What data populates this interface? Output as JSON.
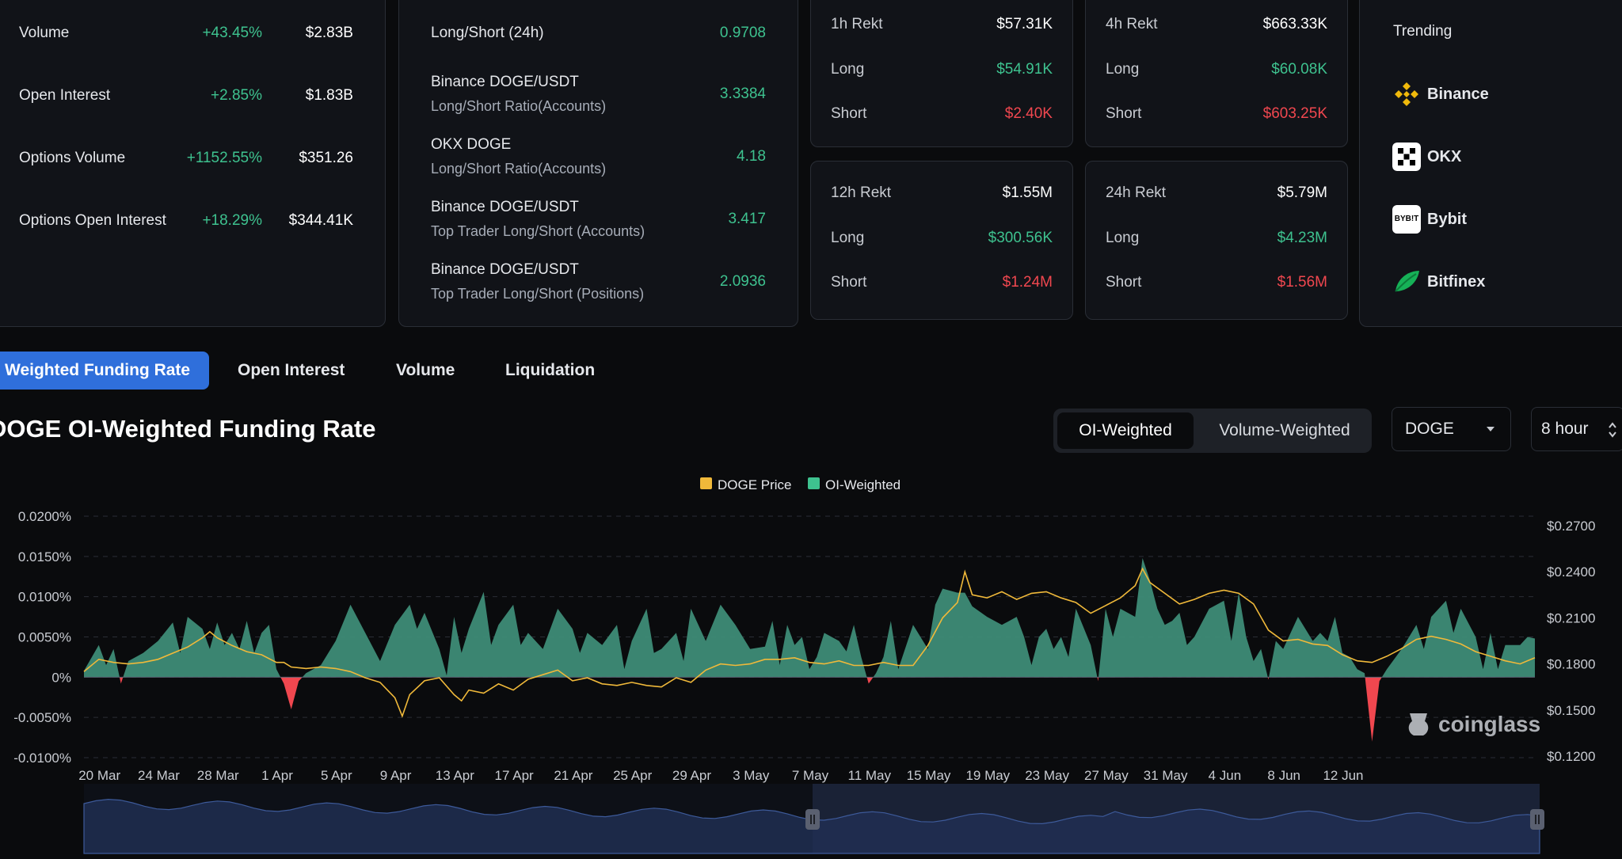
{
  "market": {
    "rows": [
      {
        "label": "Volume",
        "change": "+43.45%",
        "value": "$2.83B"
      },
      {
        "label": "Open Interest",
        "change": "+2.85%",
        "value": "$1.83B"
      },
      {
        "label": "Options Volume",
        "change": "+1152.55%",
        "value": "$351.26"
      },
      {
        "label": "Options Open Interest",
        "change": "+18.29%",
        "value": "$344.41K"
      }
    ]
  },
  "ratios": {
    "rows": [
      {
        "title": "Long/Short (24h)",
        "subtitle": "",
        "value": "0.9708"
      },
      {
        "title": "Binance DOGE/USDT",
        "subtitle": "Long/Short Ratio(Accounts)",
        "value": "3.3384"
      },
      {
        "title": "OKX DOGE",
        "subtitle": "Long/Short Ratio(Accounts)",
        "value": "4.18"
      },
      {
        "title": "Binance DOGE/USDT",
        "subtitle": "Top Trader Long/Short (Accounts)",
        "value": "3.417"
      },
      {
        "title": "Binance DOGE/USDT",
        "subtitle": "Top Trader Long/Short (Positions)",
        "value": "2.0936"
      }
    ]
  },
  "rekt": [
    {
      "title": "1h Rekt",
      "total": "$57.31K",
      "long_label": "Long",
      "long": "$54.91K",
      "short_label": "Short",
      "short": "$2.40K"
    },
    {
      "title": "4h Rekt",
      "total": "$663.33K",
      "long_label": "Long",
      "long": "$60.08K",
      "short_label": "Short",
      "short": "$603.25K"
    },
    {
      "title": "12h Rekt",
      "total": "$1.55M",
      "long_label": "Long",
      "long": "$300.56K",
      "short_label": "Short",
      "short": "$1.24M"
    },
    {
      "title": "24h Rekt",
      "total": "$5.79M",
      "long_label": "Long",
      "long": "$4.23M",
      "short_label": "Short",
      "short": "$1.56M"
    }
  ],
  "trending": {
    "title": "Trending",
    "items": [
      {
        "name": "Binance",
        "icon": "binance-icon"
      },
      {
        "name": "OKX",
        "icon": "okx-icon"
      },
      {
        "name": "Bybit",
        "icon": "bybit-icon"
      },
      {
        "name": "Bitfinex",
        "icon": "bitfinex-icon"
      }
    ],
    "bybit_logo_text": "BYB!T"
  },
  "tabs": [
    "Weighted Funding Rate",
    "Open Interest",
    "Volume",
    "Liquidation"
  ],
  "chart_title": "DOGE OI-Weighted Funding Rate",
  "toggle": {
    "on": "OI-Weighted",
    "off": "Volume-Weighted"
  },
  "symbol_select": "DOGE",
  "interval_select": "8 hour",
  "watermark": "coinglass",
  "colors": {
    "price": "#f0b93a",
    "positive": "#3ec28f",
    "negative": "#f0474f",
    "accent": "#2f6fdb"
  },
  "chart_data": {
    "type": "area",
    "legend": [
      {
        "name": "DOGE Price",
        "color": "#f0b93a"
      },
      {
        "name": "OI-Weighted",
        "color": "#3ec28f"
      }
    ],
    "legend_position": "top-center",
    "x_ticks": [
      "20 Mar",
      "24 Mar",
      "28 Mar",
      "1 Apr",
      "5 Apr",
      "9 Apr",
      "13 Apr",
      "17 Apr",
      "21 Apr",
      "25 Apr",
      "29 Apr",
      "3 May",
      "7 May",
      "11 May",
      "15 May",
      "19 May",
      "23 May",
      "27 May",
      "31 May",
      "4 Jun",
      "8 Jun",
      "12 Jun"
    ],
    "y_left_ticks": [
      "0.0200%",
      "0.0150%",
      "0.0100%",
      "0.0050%",
      "0%",
      "-0.0050%",
      "-0.0100%"
    ],
    "y_left_range": [
      -0.01,
      0.02
    ],
    "y_right_ticks": [
      "$0.2700",
      "$0.2400",
      "$0.2100",
      "$0.1800",
      "$0.1500",
      "$0.1200"
    ],
    "y_right_range": [
      0.12,
      0.27
    ],
    "x_range_days": [
      -1,
      88.5
    ],
    "series": [
      {
        "name": "OI-Weighted",
        "unit": "%",
        "points": [
          [
            -1,
            0.0008
          ],
          [
            0,
            0.004
          ],
          [
            0.5,
            0.0015
          ],
          [
            1,
            0.0035
          ],
          [
            1.5,
            -0.0008
          ],
          [
            2,
            0.002
          ],
          [
            3,
            0.003
          ],
          [
            4,
            0.0045
          ],
          [
            5,
            0.0068
          ],
          [
            5.5,
            0.003
          ],
          [
            6,
            0.0075
          ],
          [
            7,
            0.006
          ],
          [
            7.5,
            0.0035
          ],
          [
            8,
            0.0068
          ],
          [
            8.5,
            0.004
          ],
          [
            9,
            0.0055
          ],
          [
            9.5,
            0.0035
          ],
          [
            10,
            0.007
          ],
          [
            10.5,
            0.003
          ],
          [
            11,
            0.0055
          ],
          [
            11.5,
            0.0065
          ],
          [
            12,
            0.001
          ],
          [
            12.5,
            -0.0008
          ],
          [
            13,
            -0.004
          ],
          [
            13.5,
            -0.0005
          ],
          [
            14,
            0.0005
          ],
          [
            15,
            0.0015
          ],
          [
            16,
            0.0045
          ],
          [
            17,
            0.009
          ],
          [
            18,
            0.0055
          ],
          [
            19,
            0.002
          ],
          [
            20,
            0.0065
          ],
          [
            21,
            0.009
          ],
          [
            21.5,
            0.006
          ],
          [
            22,
            0.008
          ],
          [
            23,
            0.0035
          ],
          [
            23.5,
            0.0002
          ],
          [
            24,
            0.0075
          ],
          [
            24.5,
            0.003
          ],
          [
            25,
            0.006
          ],
          [
            26,
            0.0106
          ],
          [
            26.5,
            0.004
          ],
          [
            27,
            0.0065
          ],
          [
            28,
            0.009
          ],
          [
            28.5,
            0.004
          ],
          [
            29,
            0.0055
          ],
          [
            30,
            0.0035
          ],
          [
            31,
            0.0085
          ],
          [
            32,
            0.006
          ],
          [
            32.5,
            0.003
          ],
          [
            33,
            0.0055
          ],
          [
            34,
            0.004
          ],
          [
            35,
            0.0065
          ],
          [
            35.5,
            0.001
          ],
          [
            36,
            0.0045
          ],
          [
            37,
            0.0085
          ],
          [
            37.5,
            0.003
          ],
          [
            38,
            0.0035
          ],
          [
            39,
            0.0055
          ],
          [
            39.5,
            0.002
          ],
          [
            40,
            0.0085
          ],
          [
            41,
            0.0045
          ],
          [
            42,
            0.009
          ],
          [
            43,
            0.0065
          ],
          [
            44,
            0.0035
          ],
          [
            45,
            0.0038
          ],
          [
            45.5,
            0.007
          ],
          [
            46,
            0.0015
          ],
          [
            46.5,
            0.0065
          ],
          [
            47,
            0.004
          ],
          [
            47.5,
            0.005
          ],
          [
            48,
            0.001
          ],
          [
            48.5,
            0.0025
          ],
          [
            49,
            0.0055
          ],
          [
            50,
            0.0045
          ],
          [
            50.5,
            0.0032
          ],
          [
            51,
            0.0065
          ],
          [
            51.5,
            0.0025
          ],
          [
            52,
            -0.0008
          ],
          [
            52.5,
            0.0005
          ],
          [
            53,
            0.0025
          ],
          [
            53.5,
            0.007
          ],
          [
            54,
            0.001
          ],
          [
            55,
            0.0065
          ],
          [
            56,
            0.0035
          ],
          [
            56.5,
            0.009
          ],
          [
            57,
            0.011
          ],
          [
            58,
            0.0105
          ],
          [
            58.5,
            0.0105
          ],
          [
            59,
            0.0088
          ],
          [
            60,
            0.0075
          ],
          [
            61,
            0.0065
          ],
          [
            62,
            0.0075
          ],
          [
            62.5,
            0.005
          ],
          [
            63,
            0.0015
          ],
          [
            63.5,
            0.005
          ],
          [
            64,
            0.006
          ],
          [
            64.5,
            0.0035
          ],
          [
            65,
            0.005
          ],
          [
            65.5,
            0.0025
          ],
          [
            66,
            0.0085
          ],
          [
            67,
            0.004
          ],
          [
            67.5,
            -0.0005
          ],
          [
            68,
            0.0085
          ],
          [
            68.5,
            0.005
          ],
          [
            69,
            0.0085
          ],
          [
            70,
            0.0075
          ],
          [
            70.5,
            0.0148
          ],
          [
            71,
            0.012
          ],
          [
            71.5,
            0.0085
          ],
          [
            72,
            0.0065
          ],
          [
            72.5,
            0.007
          ],
          [
            73,
            0.008
          ],
          [
            73.5,
            0.004
          ],
          [
            74,
            0.005
          ],
          [
            75,
            0.0085
          ],
          [
            76,
            0.0095
          ],
          [
            76.5,
            0.0045
          ],
          [
            77,
            0.0105
          ],
          [
            77.5,
            0.005
          ],
          [
            78,
            0.002
          ],
          [
            78.5,
            0.0035
          ],
          [
            79,
            -0.0003
          ],
          [
            79.5,
            0.0045
          ],
          [
            80,
            0.0035
          ],
          [
            81,
            0.0075
          ],
          [
            82,
            0.0045
          ],
          [
            82.5,
            0.0055
          ],
          [
            83,
            0.0045
          ],
          [
            83.5,
            0.0075
          ],
          [
            84,
            0.003
          ],
          [
            84.5,
            0.0025
          ],
          [
            85,
            0.001
          ],
          [
            85.5,
            0.0005
          ],
          [
            86,
            -0.008
          ],
          [
            86.5,
            -0.0005
          ],
          [
            87,
            0.001
          ],
          [
            88,
            0.0035
          ],
          [
            89,
            0.0065
          ],
          [
            89.5,
            0.0035
          ],
          [
            90,
            0.0075
          ],
          [
            91,
            0.0095
          ],
          [
            91.5,
            0.0055
          ],
          [
            92,
            0.0085
          ],
          [
            93,
            0.005
          ],
          [
            93.5,
            0.001
          ],
          [
            94,
            0.0055
          ],
          [
            94.5,
            0.001
          ],
          [
            95,
            0.004
          ],
          [
            96,
            0.004
          ],
          [
            96.5,
            0.005
          ],
          [
            97,
            0.0048
          ]
        ]
      },
      {
        "name": "DOGE Price",
        "unit": "$",
        "points": [
          [
            -1,
            0.175
          ],
          [
            0,
            0.183
          ],
          [
            1,
            0.181
          ],
          [
            2,
            0.18
          ],
          [
            3,
            0.181
          ],
          [
            4,
            0.183
          ],
          [
            5,
            0.187
          ],
          [
            6,
            0.191
          ],
          [
            7,
            0.197
          ],
          [
            7.5,
            0.201
          ],
          [
            8,
            0.197
          ],
          [
            9,
            0.192
          ],
          [
            10,
            0.188
          ],
          [
            11,
            0.186
          ],
          [
            12,
            0.181
          ],
          [
            12.5,
            0.181
          ],
          [
            13,
            0.178
          ],
          [
            14,
            0.177
          ],
          [
            15,
            0.178
          ],
          [
            16,
            0.177
          ],
          [
            17,
            0.175
          ],
          [
            18,
            0.171
          ],
          [
            19,
            0.168
          ],
          [
            20,
            0.158
          ],
          [
            20.5,
            0.146
          ],
          [
            21,
            0.16
          ],
          [
            22,
            0.169
          ],
          [
            23,
            0.171
          ],
          [
            24,
            0.16
          ],
          [
            24.5,
            0.156
          ],
          [
            25,
            0.163
          ],
          [
            26,
            0.161
          ],
          [
            27,
            0.167
          ],
          [
            28,
            0.163
          ],
          [
            29,
            0.17
          ],
          [
            30,
            0.173
          ],
          [
            31,
            0.176
          ],
          [
            32,
            0.169
          ],
          [
            33,
            0.171
          ],
          [
            34,
            0.167
          ],
          [
            35,
            0.166
          ],
          [
            36,
            0.168
          ],
          [
            37,
            0.166
          ],
          [
            38,
            0.165
          ],
          [
            39,
            0.171
          ],
          [
            40,
            0.168
          ],
          [
            41,
            0.176
          ],
          [
            42,
            0.18
          ],
          [
            43,
            0.179
          ],
          [
            44,
            0.18
          ],
          [
            45,
            0.183
          ],
          [
            46,
            0.183
          ],
          [
            47,
            0.184
          ],
          [
            48,
            0.181
          ],
          [
            49,
            0.18
          ],
          [
            50,
            0.182
          ],
          [
            51,
            0.179
          ],
          [
            52,
            0.179
          ],
          [
            53,
            0.181
          ],
          [
            54,
            0.179
          ],
          [
            55,
            0.179
          ],
          [
            56,
            0.192
          ],
          [
            57,
            0.21
          ],
          [
            58,
            0.22
          ],
          [
            58.5,
            0.24
          ],
          [
            59,
            0.225
          ],
          [
            60,
            0.223
          ],
          [
            61,
            0.227
          ],
          [
            62,
            0.222
          ],
          [
            63,
            0.226
          ],
          [
            64,
            0.227
          ],
          [
            65,
            0.223
          ],
          [
            66,
            0.22
          ],
          [
            67,
            0.213
          ],
          [
            68,
            0.218
          ],
          [
            69,
            0.223
          ],
          [
            70,
            0.231
          ],
          [
            70.5,
            0.242
          ],
          [
            71,
            0.233
          ],
          [
            72,
            0.226
          ],
          [
            73,
            0.219
          ],
          [
            74,
            0.222
          ],
          [
            75,
            0.226
          ],
          [
            76,
            0.228
          ],
          [
            77,
            0.226
          ],
          [
            78,
            0.219
          ],
          [
            79,
            0.202
          ],
          [
            80,
            0.195
          ],
          [
            81,
            0.196
          ],
          [
            82,
            0.193
          ],
          [
            83,
            0.192
          ],
          [
            84,
            0.186
          ],
          [
            85,
            0.182
          ],
          [
            86,
            0.181
          ],
          [
            87,
            0.185
          ],
          [
            88,
            0.19
          ],
          [
            89,
            0.196
          ],
          [
            90,
            0.198
          ],
          [
            91,
            0.196
          ],
          [
            92,
            0.193
          ],
          [
            93,
            0.188
          ],
          [
            94,
            0.185
          ],
          [
            95,
            0.182
          ],
          [
            96,
            0.18
          ],
          [
            97,
            0.184
          ]
        ]
      }
    ]
  }
}
